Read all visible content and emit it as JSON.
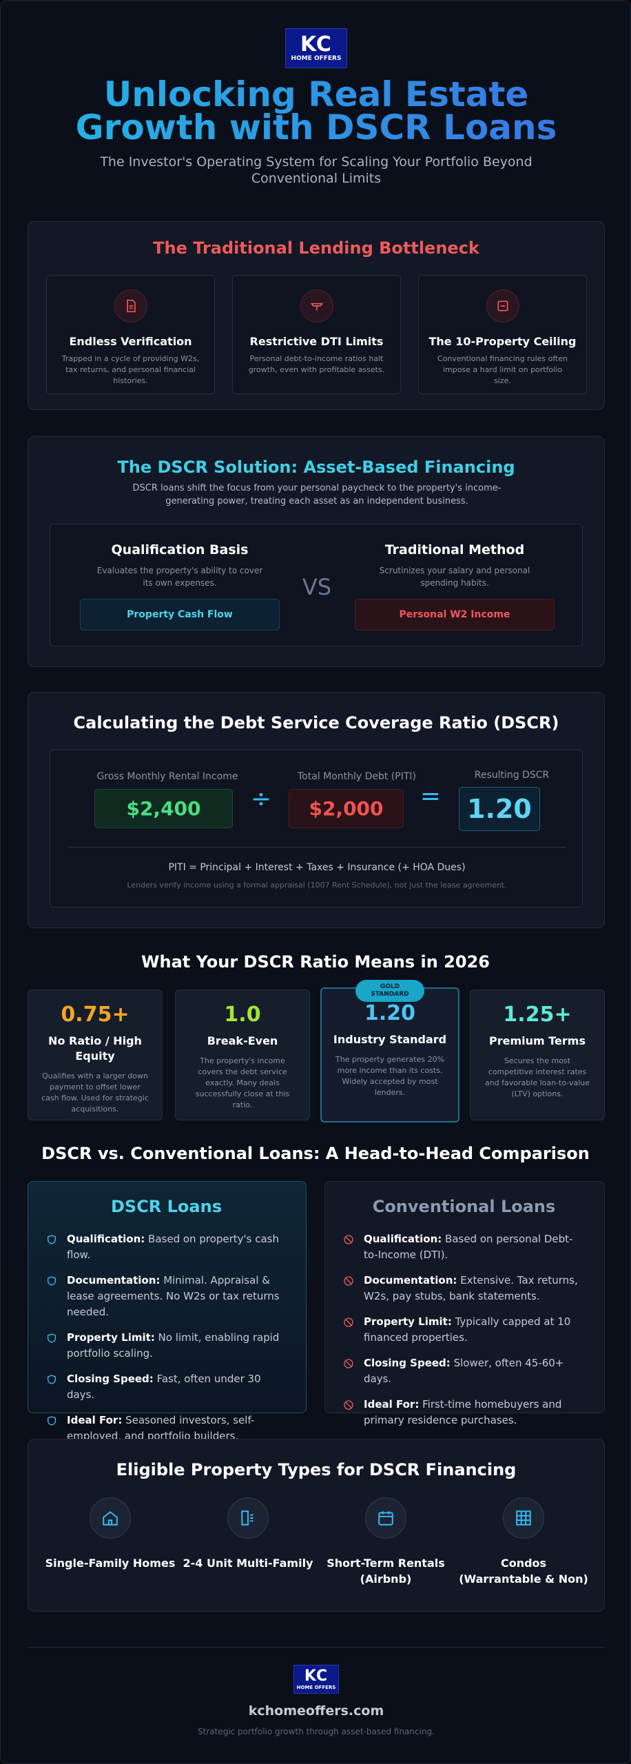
{
  "header": {
    "logo": {
      "line1": "KC",
      "line2": "HOME OFFERS"
    },
    "title": "Unlocking Real Estate Growth with DSCR Loans",
    "subtitle": "The Investor's Operating System for Scaling Your Portfolio Beyond Conventional Limits"
  },
  "bottleneck": {
    "title": "The Traditional Lending Bottleneck",
    "cards": [
      {
        "title": "Endless Verification",
        "text": "Trapped in a cycle of providing W2s, tax returns, and personal financial histories."
      },
      {
        "title": "Restrictive DTI Limits",
        "text": "Personal debt-to-income ratios halt growth, even with profitable assets."
      },
      {
        "title": "The 10-Property Ceiling",
        "text": "Conventional financing rules often impose a hard limit on portfolio size."
      }
    ]
  },
  "solution": {
    "title": "The DSCR Solution: Asset-Based Financing",
    "description": "DSCR loans shift the focus from your personal paycheck to the property's income-generating power, treating each asset as an independent business.",
    "left": {
      "title": "Qualification Basis",
      "text": "Evaluates the property's ability to cover its own expenses.",
      "tag": "Property Cash Flow"
    },
    "vs": "VS",
    "right": {
      "title": "Traditional Method",
      "text": "Scrutinizes your salary and personal spending habits.",
      "tag": "Personal W2 Income"
    }
  },
  "calculation": {
    "title": "Calculating the Debt Service Coverage Ratio (DSCR)",
    "income": {
      "label": "Gross Monthly Rental Income",
      "value": "$2,400"
    },
    "divide": "÷",
    "debt": {
      "label": "Total Monthly Debt (PITI)",
      "value": "$2,000"
    },
    "equals": "=",
    "result": {
      "label": "Resulting DSCR",
      "value": "1.20"
    },
    "formula": "PITI = Principal + Interest + Taxes + Insurance (+ HOA Dues)",
    "note": "Lenders verify income using a formal appraisal (1007 Rent Schedule), not just the lease agreement."
  },
  "ratios": {
    "title": "What Your DSCR Ratio Means in 2026",
    "badge": "GOLD STANDARD",
    "cards": [
      {
        "value": "0.75+",
        "title": "No Ratio / High Equity",
        "text": "Qualifies with a larger down payment to offset lower cash flow. Used for strategic acquisitions."
      },
      {
        "value": "1.0",
        "title": "Break-Even",
        "text": "The property's income covers the debt service exactly. Many deals successfully close at this ratio."
      },
      {
        "value": "1.20",
        "title": "Industry Standard",
        "text": "The property generates 20% more income than its costs. Widely accepted by most lenders."
      },
      {
        "value": "1.25+",
        "title": "Premium Terms",
        "text": "Secures the most competitive interest rates and favorable loan-to-value (LTV) options."
      }
    ]
  },
  "comparison": {
    "title": "DSCR vs. Conventional Loans: A Head-to-Head Comparison",
    "dscr": {
      "title": "DSCR Loans",
      "rows": [
        {
          "label": "Qualification:",
          "text": "Based on property's cash flow."
        },
        {
          "label": "Documentation:",
          "text": "Minimal. Appraisal & lease agreements. No W2s or tax returns needed."
        },
        {
          "label": "Property Limit:",
          "text": "No limit, enabling rapid portfolio scaling."
        },
        {
          "label": "Closing Speed:",
          "text": "Fast, often under 30 days."
        },
        {
          "label": "Ideal For:",
          "text": "Seasoned investors, self-employed, and portfolio builders."
        }
      ]
    },
    "conventional": {
      "title": "Conventional Loans",
      "rows": [
        {
          "label": "Qualification:",
          "text": "Based on personal Debt-to-Income (DTI)."
        },
        {
          "label": "Documentation:",
          "text": "Extensive. Tax returns, W2s, pay stubs, bank statements."
        },
        {
          "label": "Property Limit:",
          "text": "Typically capped at 10 financed properties."
        },
        {
          "label": "Closing Speed:",
          "text": "Slower, often 45-60+ days."
        },
        {
          "label": "Ideal For:",
          "text": "First-time homebuyers and primary residence purchases."
        }
      ]
    }
  },
  "properties": {
    "title": "Eligible Property Types for DSCR Financing",
    "items": [
      "Single-Family Homes",
      "2-4 Unit Multi-Family",
      "Short-Term Rentals (Airbnb)",
      "Condos (Warrantable & Non)"
    ]
  },
  "footer": {
    "logo": {
      "line1": "KC",
      "line2": "HOME OFFERS"
    },
    "site": "kchomeoffers.com",
    "tagline": "Strategic portfolio growth through asset-based financing."
  }
}
